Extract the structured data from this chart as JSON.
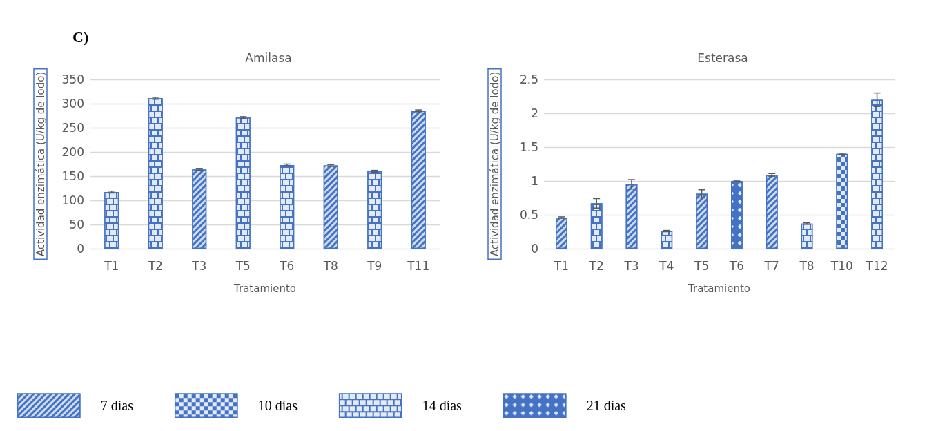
{
  "chart_data": [
    {
      "type": "bar",
      "title": "Amilasa",
      "xlabel": "Tratamiento",
      "ylabel": "Actividad enzimática (U/kg de lodo)",
      "annotations": [
        "C)"
      ],
      "categories": [
        "T1",
        "T2",
        "T3",
        "T5",
        "T6",
        "T8",
        "T9",
        "T11"
      ],
      "series": [
        {
          "name": "7 días",
          "color": "#4472c4",
          "values": [
            null,
            null,
            164,
            null,
            null,
            172,
            null,
            285
          ],
          "errors": [
            null,
            null,
            2,
            null,
            null,
            2,
            null,
            2
          ]
        },
        {
          "name": "14 días",
          "color": "#4472c4",
          "values": [
            117,
            311,
            null,
            271,
            173,
            null,
            160,
            null
          ],
          "errors": [
            2,
            2,
            null,
            2,
            2,
            null,
            2,
            null
          ]
        }
      ],
      "ylim": [
        0,
        350
      ],
      "yticks": [
        0,
        50,
        100,
        150,
        200,
        250,
        300,
        350
      ],
      "grid": "y"
    },
    {
      "type": "bar",
      "title": "Esterasa",
      "xlabel": "Tratamiento",
      "ylabel": "Actividad enzimática (U/kg de lodo)",
      "categories": [
        "T1",
        "T2",
        "T3",
        "T4",
        "T5",
        "T6",
        "T7",
        "T8",
        "T10",
        "T12"
      ],
      "series": [
        {
          "name": "7 días",
          "color": "#4472c4",
          "values": [
            0.46,
            null,
            0.95,
            null,
            0.81,
            null,
            1.09,
            null,
            null,
            null
          ],
          "errors": [
            0.01,
            null,
            0.07,
            null,
            0.06,
            null,
            0.02,
            null,
            null,
            null
          ]
        },
        {
          "name": "10 días",
          "color": "#4472c4",
          "values": [
            null,
            null,
            null,
            null,
            null,
            null,
            null,
            null,
            1.4,
            null
          ],
          "errors": [
            null,
            null,
            null,
            null,
            null,
            null,
            null,
            null,
            0.01,
            null
          ]
        },
        {
          "name": "14 días",
          "color": "#4472c4",
          "values": [
            null,
            0.67,
            null,
            0.26,
            null,
            null,
            null,
            0.37,
            null,
            2.2
          ],
          "errors": [
            null,
            0.07,
            null,
            0.01,
            null,
            null,
            null,
            0.01,
            null,
            0.1
          ]
        },
        {
          "name": "21 días",
          "color": "#4472c4",
          "values": [
            null,
            null,
            null,
            null,
            null,
            1.0,
            null,
            null,
            null,
            null
          ],
          "errors": [
            null,
            null,
            null,
            null,
            null,
            0.01,
            null,
            null,
            null,
            null
          ]
        }
      ],
      "ylim": [
        0,
        2.5
      ],
      "yticks": [
        0,
        0.5,
        1,
        1.5,
        2,
        2.5
      ],
      "grid": "y",
      "legend": "bottom"
    }
  ]
}
